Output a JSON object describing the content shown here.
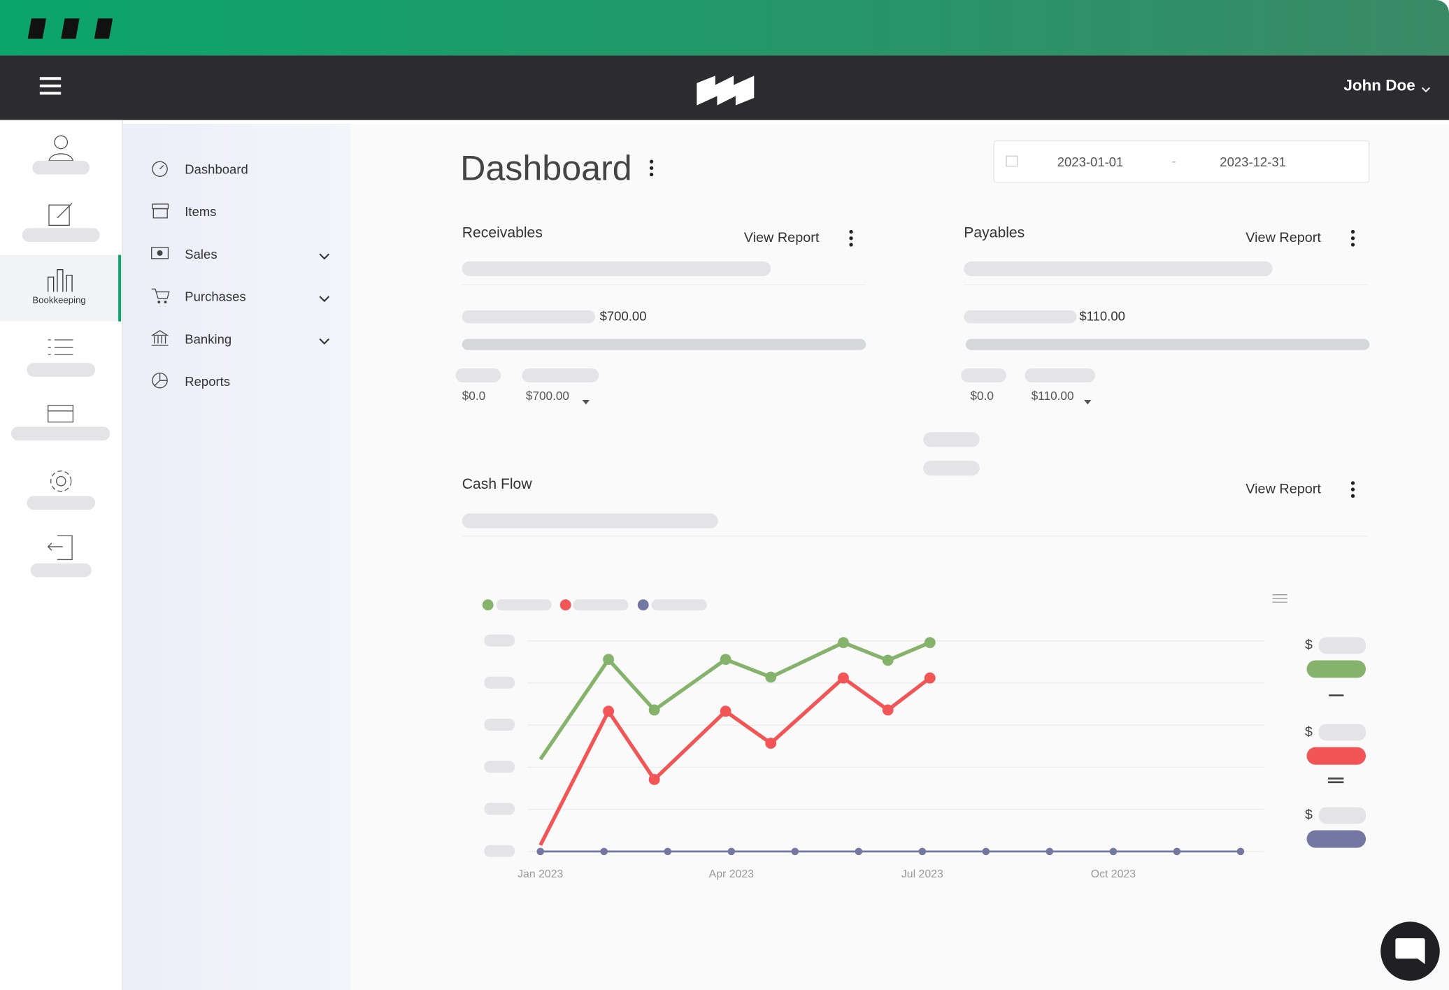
{
  "header": {
    "user": "John Doe"
  },
  "sidebar": {
    "active_label": "Bookkeeping"
  },
  "menu": [
    "Dashboard",
    "Items",
    "Sales",
    "Purchases",
    "Banking",
    "Reports"
  ],
  "page": {
    "title": "Dashboard",
    "date_from": "2023-01-01",
    "date_sep": "-",
    "date_to": "2023-12-31"
  },
  "cards": [
    {
      "title": "Receivables",
      "link": "View Report",
      "amount": "$700.00",
      "low": "$0.0",
      "high": "$700.00"
    },
    {
      "title": "Payables",
      "link": "View Report",
      "amount": "$110.00",
      "low": "$0.0",
      "high": "$110.00"
    }
  ],
  "cashflow": {
    "title": "Cash Flow",
    "link": "View Report",
    "legend_symbols": [
      "$",
      "$",
      "$"
    ]
  },
  "chart_data": {
    "type": "line",
    "xlim": [
      -0.2,
      11.4
    ],
    "ylim": [
      0,
      5
    ],
    "yticks": [
      0,
      1,
      2,
      3,
      4,
      5
    ],
    "grid": true,
    "xticks": [
      {
        "value": 0,
        "label": "Jan 2023"
      },
      {
        "value": 3,
        "label": "Apr 2023"
      },
      {
        "value": 6,
        "label": "Jul 2023"
      },
      {
        "value": 9,
        "label": "Oct 2023"
      }
    ],
    "series": [
      {
        "color": "#86b36b",
        "x": [
          0,
          1.07,
          1.79,
          2.91,
          3.62,
          4.76,
          5.46,
          6.12
        ],
        "values": [
          2.19,
          4.56,
          3.36,
          4.56,
          4.14,
          4.96,
          4.54,
          4.96
        ]
      },
      {
        "color": "#f25555",
        "x": [
          0,
          1.07,
          1.79,
          2.91,
          3.62,
          4.76,
          5.46,
          6.12
        ],
        "values": [
          0.15,
          3.33,
          1.71,
          3.33,
          2.57,
          4.12,
          3.36,
          4.12
        ]
      },
      {
        "color": "#7577a3",
        "x": [
          0,
          1,
          2,
          3,
          4,
          5,
          6,
          7,
          8,
          9,
          10,
          11
        ],
        "values": [
          0,
          0,
          0,
          0,
          0,
          0,
          0,
          0,
          0,
          0,
          0,
          0
        ]
      }
    ]
  }
}
